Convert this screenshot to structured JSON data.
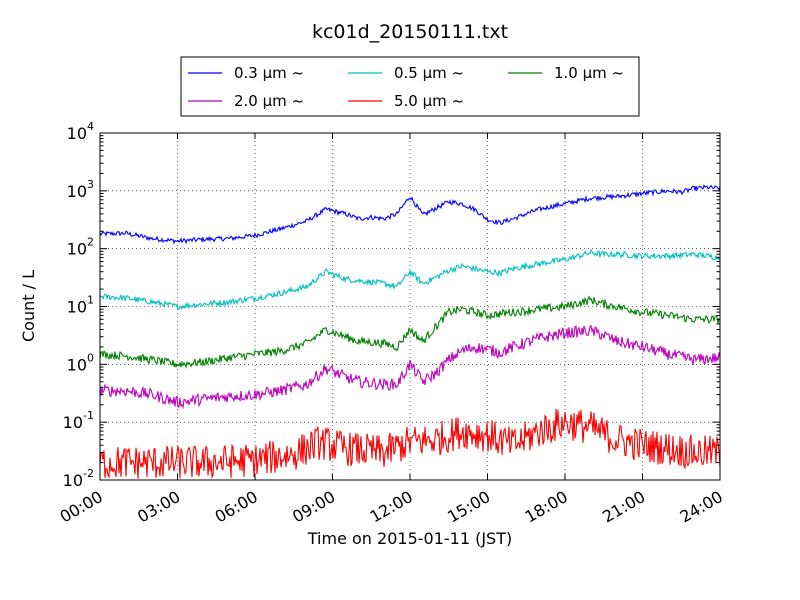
{
  "chart_data": {
    "type": "line",
    "title": "kc01d_20150111.txt",
    "xlabel": "Time on 2015-01-11 (JST)",
    "ylabel": "Count / L",
    "yscale": "log",
    "ylim": [
      0.01,
      10000
    ],
    "xlim": [
      "00:00",
      "24:00"
    ],
    "x_ticks": [
      "00:00",
      "03:00",
      "06:00",
      "09:00",
      "12:00",
      "15:00",
      "18:00",
      "21:00",
      "24:00"
    ],
    "y_ticks": [
      {
        "base": "10",
        "exp": "-2"
      },
      {
        "base": "10",
        "exp": "-1"
      },
      {
        "base": "10",
        "exp": "0"
      },
      {
        "base": "10",
        "exp": "1"
      },
      {
        "base": "10",
        "exp": "2"
      },
      {
        "base": "10",
        "exp": "3"
      },
      {
        "base": "10",
        "exp": "4"
      }
    ],
    "grid": true,
    "legend_position": "top-center",
    "series": [
      {
        "name": "0.3 μm ~",
        "color": "#0000ff",
        "noise": 0.04,
        "x": [
          "00:00",
          "01:00",
          "02:00",
          "03:00",
          "04:00",
          "05:00",
          "06:00",
          "07:00",
          "08:00",
          "08:45",
          "09:30",
          "10:00",
          "10:30",
          "11:00",
          "11:30",
          "12:00",
          "12:30",
          "13:00",
          "13:30",
          "14:00",
          "14:30",
          "15:00",
          "15:30",
          "16:00",
          "16:30",
          "17:00",
          "18:00",
          "19:00",
          "20:00",
          "21:00",
          "22:00",
          "22:30",
          "23:00",
          "23:30",
          "24:00"
        ],
        "y": [
          180,
          185,
          150,
          135,
          145,
          150,
          170,
          220,
          300,
          480,
          400,
          330,
          350,
          330,
          400,
          800,
          380,
          500,
          650,
          600,
          480,
          320,
          280,
          330,
          400,
          480,
          600,
          750,
          800,
          900,
          1000,
          950,
          1100,
          1150,
          1100
        ]
      },
      {
        "name": "0.5 μm ~",
        "color": "#00bfbf",
        "noise": 0.05,
        "x": [
          "00:00",
          "01:00",
          "02:00",
          "03:00",
          "04:00",
          "05:00",
          "06:00",
          "07:00",
          "08:00",
          "08:45",
          "09:30",
          "10:00",
          "11:00",
          "11:30",
          "12:00",
          "12:30",
          "13:00",
          "13:30",
          "14:00",
          "14:30",
          "15:00",
          "15:30",
          "16:00",
          "17:00",
          "18:00",
          "19:00",
          "19:30",
          "20:00",
          "21:00",
          "22:00",
          "23:00",
          "24:00"
        ],
        "y": [
          15,
          14,
          12,
          10,
          11,
          12,
          14,
          17,
          22,
          40,
          30,
          28,
          25,
          22,
          40,
          25,
          32,
          42,
          50,
          45,
          40,
          38,
          45,
          55,
          65,
          85,
          80,
          80,
          75,
          75,
          80,
          70
        ]
      },
      {
        "name": "1.0 μm ~",
        "color": "#008000",
        "noise": 0.07,
        "x": [
          "00:00",
          "01:00",
          "02:00",
          "03:00",
          "04:00",
          "05:00",
          "06:00",
          "07:00",
          "08:00",
          "08:45",
          "09:30",
          "10:00",
          "11:00",
          "11:30",
          "12:00",
          "12:30",
          "13:00",
          "13:30",
          "14:00",
          "14:30",
          "15:00",
          "15:30",
          "16:00",
          "17:00",
          "18:00",
          "19:00",
          "19:30",
          "20:00",
          "21:00",
          "22:00",
          "23:00",
          "24:00"
        ],
        "y": [
          1.5,
          1.4,
          1.2,
          1.0,
          1.1,
          1.3,
          1.5,
          1.7,
          2.3,
          4.0,
          3.0,
          2.5,
          2.3,
          2.0,
          4.0,
          2.5,
          4.5,
          8.0,
          9.0,
          8.0,
          7.0,
          7.5,
          8.0,
          9.0,
          10,
          13,
          11,
          10,
          8.0,
          7.0,
          6.0,
          6.0
        ]
      },
      {
        "name": "2.0 μm ~",
        "color": "#bf00bf",
        "noise": 0.1,
        "x": [
          "00:00",
          "01:00",
          "02:00",
          "03:00",
          "04:00",
          "05:00",
          "06:00",
          "07:00",
          "08:00",
          "08:45",
          "09:30",
          "10:00",
          "11:00",
          "11:30",
          "12:00",
          "12:30",
          "13:00",
          "13:30",
          "14:00",
          "14:30",
          "15:00",
          "15:30",
          "16:00",
          "17:00",
          "18:00",
          "19:00",
          "19:30",
          "20:00",
          "21:00",
          "22:00",
          "23:00",
          "24:00"
        ],
        "y": [
          0.35,
          0.35,
          0.3,
          0.22,
          0.25,
          0.28,
          0.3,
          0.35,
          0.45,
          0.85,
          0.6,
          0.5,
          0.45,
          0.45,
          1.0,
          0.5,
          0.7,
          1.2,
          1.7,
          2.0,
          1.8,
          1.6,
          2.0,
          2.8,
          3.5,
          3.8,
          3.2,
          2.5,
          2.0,
          1.5,
          1.2,
          1.3
        ]
      },
      {
        "name": "5.0 μm ~",
        "color": "#ff0000",
        "noise": 0.3,
        "x": [
          "00:00",
          "02:00",
          "04:00",
          "06:00",
          "07:30",
          "08:30",
          "09:30",
          "11:00",
          "12:00",
          "13:00",
          "14:00",
          "15:00",
          "16:00",
          "17:00",
          "18:00",
          "19:00",
          "20:00",
          "21:00",
          "22:00",
          "23:00",
          "24:00"
        ],
        "y": [
          0.02,
          0.02,
          0.02,
          0.022,
          0.028,
          0.045,
          0.035,
          0.03,
          0.045,
          0.05,
          0.07,
          0.06,
          0.04,
          0.07,
          0.1,
          0.08,
          0.05,
          0.04,
          0.035,
          0.03,
          0.03
        ]
      }
    ]
  }
}
